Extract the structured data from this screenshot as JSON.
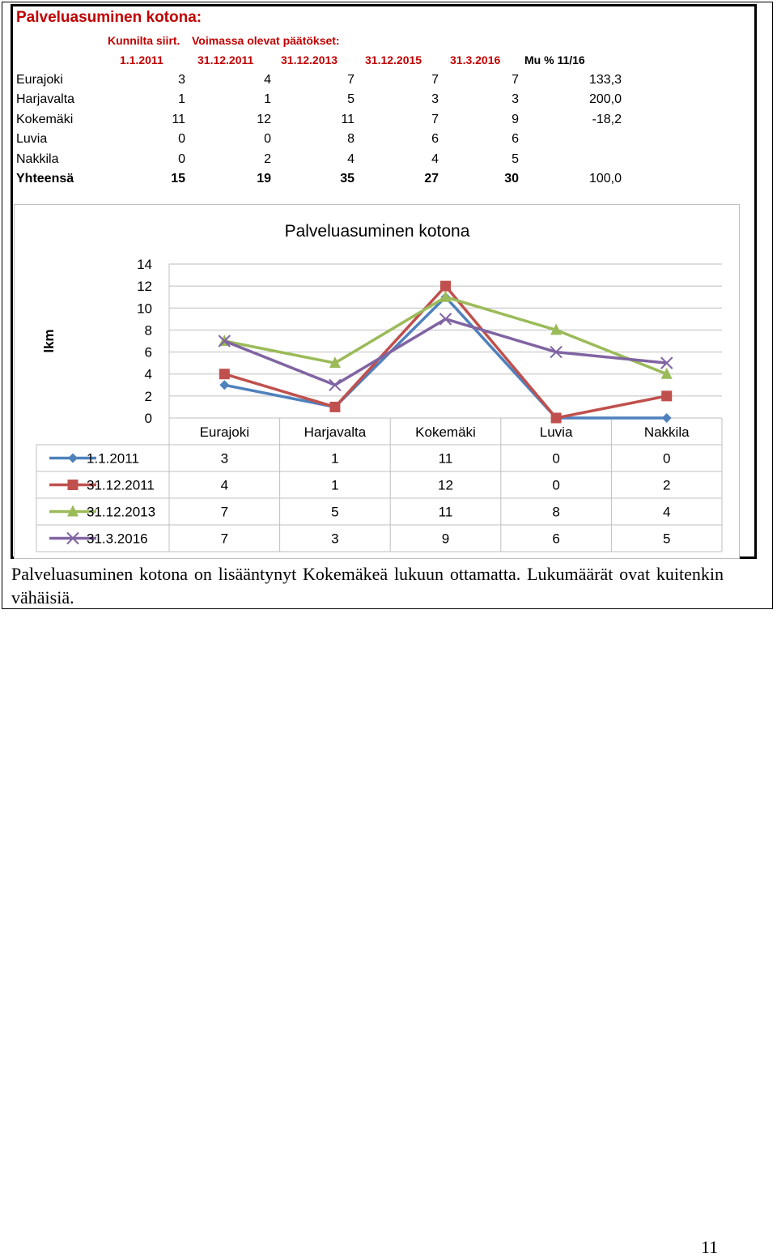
{
  "table": {
    "title": "Palveluasuminen kotona:",
    "header_row1": {
      "col1": "Kunnilta siirt.",
      "col2": "Voimassa olevat päätökset:"
    },
    "header_row2": [
      "1.1.2011",
      "31.12.2011",
      "31.12.2013",
      "31.12.2015",
      "31.3.2016",
      "Mu % 11/16"
    ],
    "rows": [
      {
        "name": "Eurajoki",
        "values": [
          "3",
          "4",
          "7",
          "7",
          "7",
          "133,3"
        ]
      },
      {
        "name": "Harjavalta",
        "values": [
          "1",
          "1",
          "5",
          "3",
          "3",
          "200,0"
        ]
      },
      {
        "name": "Kokemäki",
        "values": [
          "11",
          "12",
          "11",
          "7",
          "9",
          "-18,2"
        ]
      },
      {
        "name": "Luvia",
        "values": [
          "0",
          "0",
          "8",
          "6",
          "6",
          ""
        ]
      },
      {
        "name": "Nakkila",
        "values": [
          "0",
          "2",
          "4",
          "4",
          "5",
          ""
        ]
      }
    ],
    "total": {
      "name": "Yhteensä",
      "values": [
        "15",
        "19",
        "35",
        "27",
        "30",
        "100,0"
      ]
    }
  },
  "chart_data": {
    "type": "line",
    "title": "Palveluasuminen kotona",
    "ylabel": "lkm",
    "xlabel": "",
    "categories": [
      "Eurajoki",
      "Harjavalta",
      "Kokemäki",
      "Luvia",
      "Nakkila"
    ],
    "ylim": [
      0,
      14
    ],
    "yticks": [
      0,
      2,
      4,
      6,
      8,
      10,
      12,
      14
    ],
    "grid": true,
    "legend": "data-table",
    "series": [
      {
        "name": "1.1.2011",
        "values": [
          3,
          1,
          11,
          0,
          0
        ],
        "color": "#4f81bd",
        "marker": "diamond"
      },
      {
        "name": "31.12.2011",
        "values": [
          4,
          1,
          12,
          0,
          2
        ],
        "color": "#c0504d",
        "marker": "square"
      },
      {
        "name": "31.12.2013",
        "values": [
          7,
          5,
          11,
          8,
          4
        ],
        "color": "#9bbb59",
        "marker": "triangle"
      },
      {
        "name": "31.3.2016",
        "values": [
          7,
          3,
          9,
          6,
          5
        ],
        "color": "#8064a2",
        "marker": "x"
      }
    ]
  },
  "caption": "Palveluasuminen kotona on lisääntynyt Kokemäkeä lukuun ottamatta. Lukumäärät ovat kuitenkin vähäisiä.",
  "page_number": "11"
}
